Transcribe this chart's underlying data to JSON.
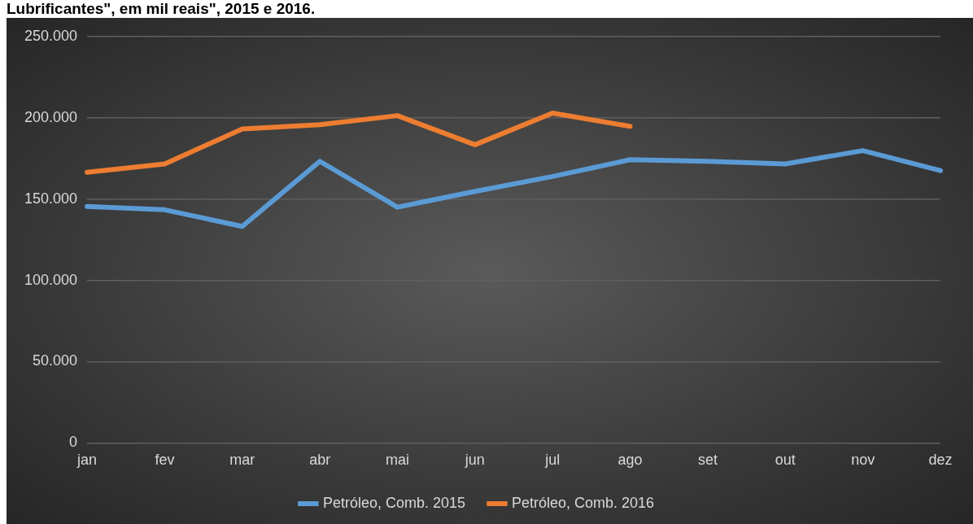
{
  "chart_data": {
    "type": "line",
    "title": "Lubrificantes\", em mil reais\", 2015 e 2016.",
    "categories": [
      "jan",
      "fev",
      "mar",
      "abr",
      "mai",
      "jun",
      "jul",
      "ago",
      "set",
      "out",
      "nov",
      "dez"
    ],
    "series": [
      {
        "name": "Petróleo, Comb. 2015",
        "color": "#5b9bd5",
        "values": [
          145500,
          143400,
          133200,
          173200,
          145000,
          154700,
          163900,
          174200,
          173200,
          171600,
          179800,
          167500
        ]
      },
      {
        "name": "Petróleo, Comb. 2016",
        "color": "#ed7d31",
        "values": [
          166500,
          171600,
          193100,
          195700,
          201300,
          183400,
          202900,
          194700,
          null,
          null,
          null,
          null
        ]
      }
    ],
    "ylim": [
      0,
      250000
    ],
    "yticks": [
      0,
      {
        "value": 50000,
        "label": "50.000"
      },
      {
        "value": 100000,
        "label": "100.000"
      },
      {
        "value": 150000,
        "label": "150.000"
      },
      {
        "value": 200000,
        "label": "200.000"
      },
      {
        "value": 250000,
        "label": "250.000"
      }
    ],
    "grid": "y",
    "legend": "bottom",
    "marker": "none",
    "line_style": "solid"
  }
}
